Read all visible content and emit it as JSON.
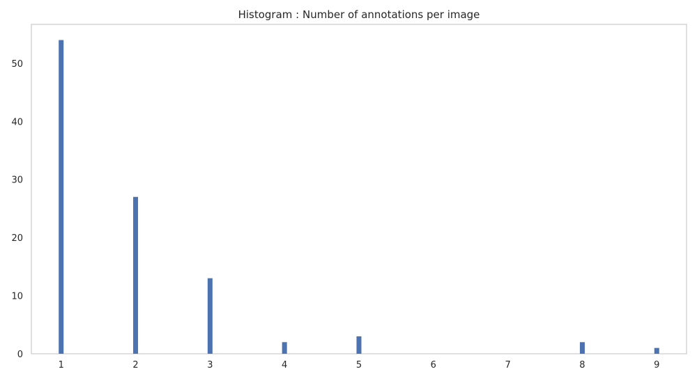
{
  "chart_data": {
    "type": "bar",
    "title": "Histogram : Number of annotations per image",
    "xlabel": "",
    "ylabel": "",
    "x": [
      1,
      2,
      3,
      4,
      5,
      8,
      9
    ],
    "values": [
      54,
      27,
      13,
      2,
      3,
      2,
      1
    ],
    "bar_color": "#4c72b0",
    "xticks": [
      1,
      2,
      3,
      4,
      5,
      6,
      7,
      8,
      9
    ],
    "yticks": [
      0,
      10,
      20,
      30,
      40,
      50
    ],
    "xlim": [
      0.6,
      9.4
    ],
    "ylim": [
      0,
      56.7
    ],
    "grid": false,
    "legend": "none"
  }
}
